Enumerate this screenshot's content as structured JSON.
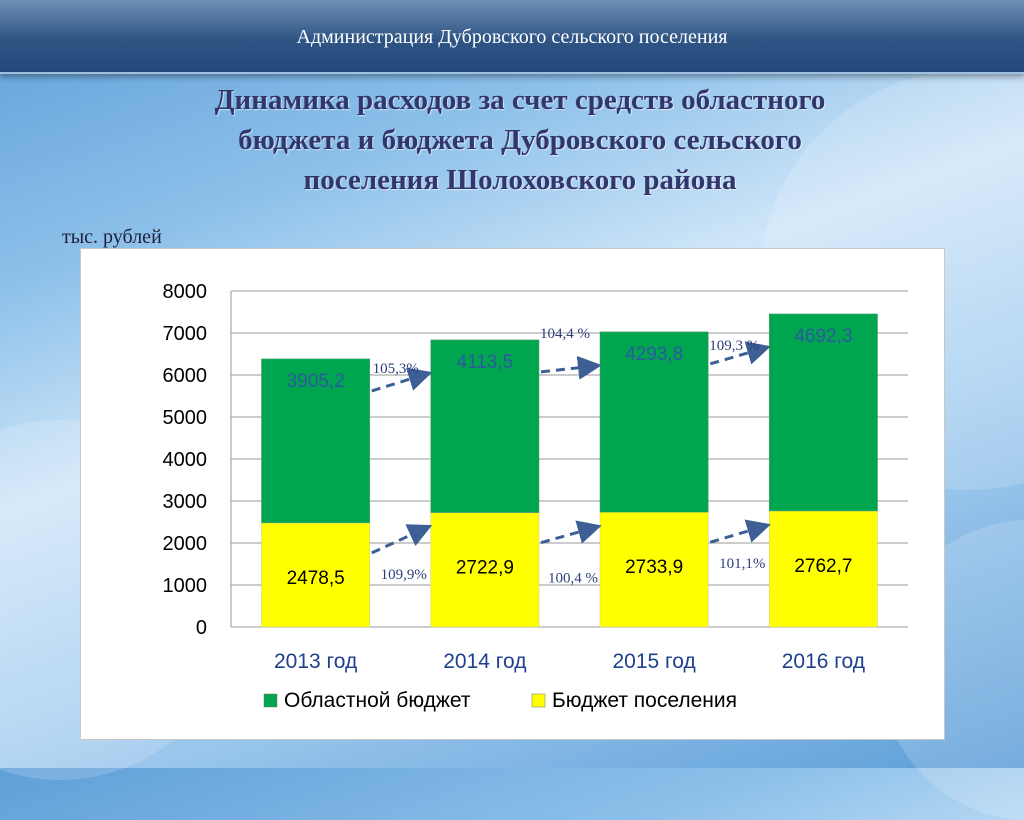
{
  "header": {
    "text": "Администрация Дубровского сельского поселения"
  },
  "title_lines": [
    "Динамика расходов за счет средств областного",
    "бюджета и бюджета Дубровского сельского",
    "поселения Шолоховского района"
  ],
  "unit_label": "тыс. рублей",
  "chart_data": {
    "type": "bar",
    "stacked": true,
    "categories": [
      "2013 год",
      "2014 год",
      "2015 год",
      "2016 год"
    ],
    "series": [
      {
        "name": "Бюджет поселения",
        "values": [
          2478.5,
          2722.9,
          2733.9,
          2762.7
        ],
        "labels": [
          "2478,5",
          "2722,9",
          "2733,9",
          "2762,7"
        ],
        "color": "#ffff00"
      },
      {
        "name": "Областной бюджет",
        "values": [
          3905.2,
          4113.5,
          4293.8,
          4692.3
        ],
        "labels": [
          "3905,2",
          "4113,5",
          "4293,8",
          "4692,3"
        ],
        "color": "#00a64f"
      }
    ],
    "ylim": [
      0,
      8000
    ],
    "yticks": [
      0,
      1000,
      2000,
      3000,
      4000,
      5000,
      6000,
      7000,
      8000
    ],
    "grid": true,
    "legend_position": "bottom",
    "growth_labels": {
      "oblast": [
        "105,3%",
        "104,4 %",
        "109,3 %"
      ],
      "settlement": [
        "109,9%",
        "100,4 %",
        "101,1%"
      ]
    }
  },
  "colors": {
    "oblast": "#00a64f",
    "settlement": "#ffff00",
    "arrow": "#3d5f95"
  }
}
